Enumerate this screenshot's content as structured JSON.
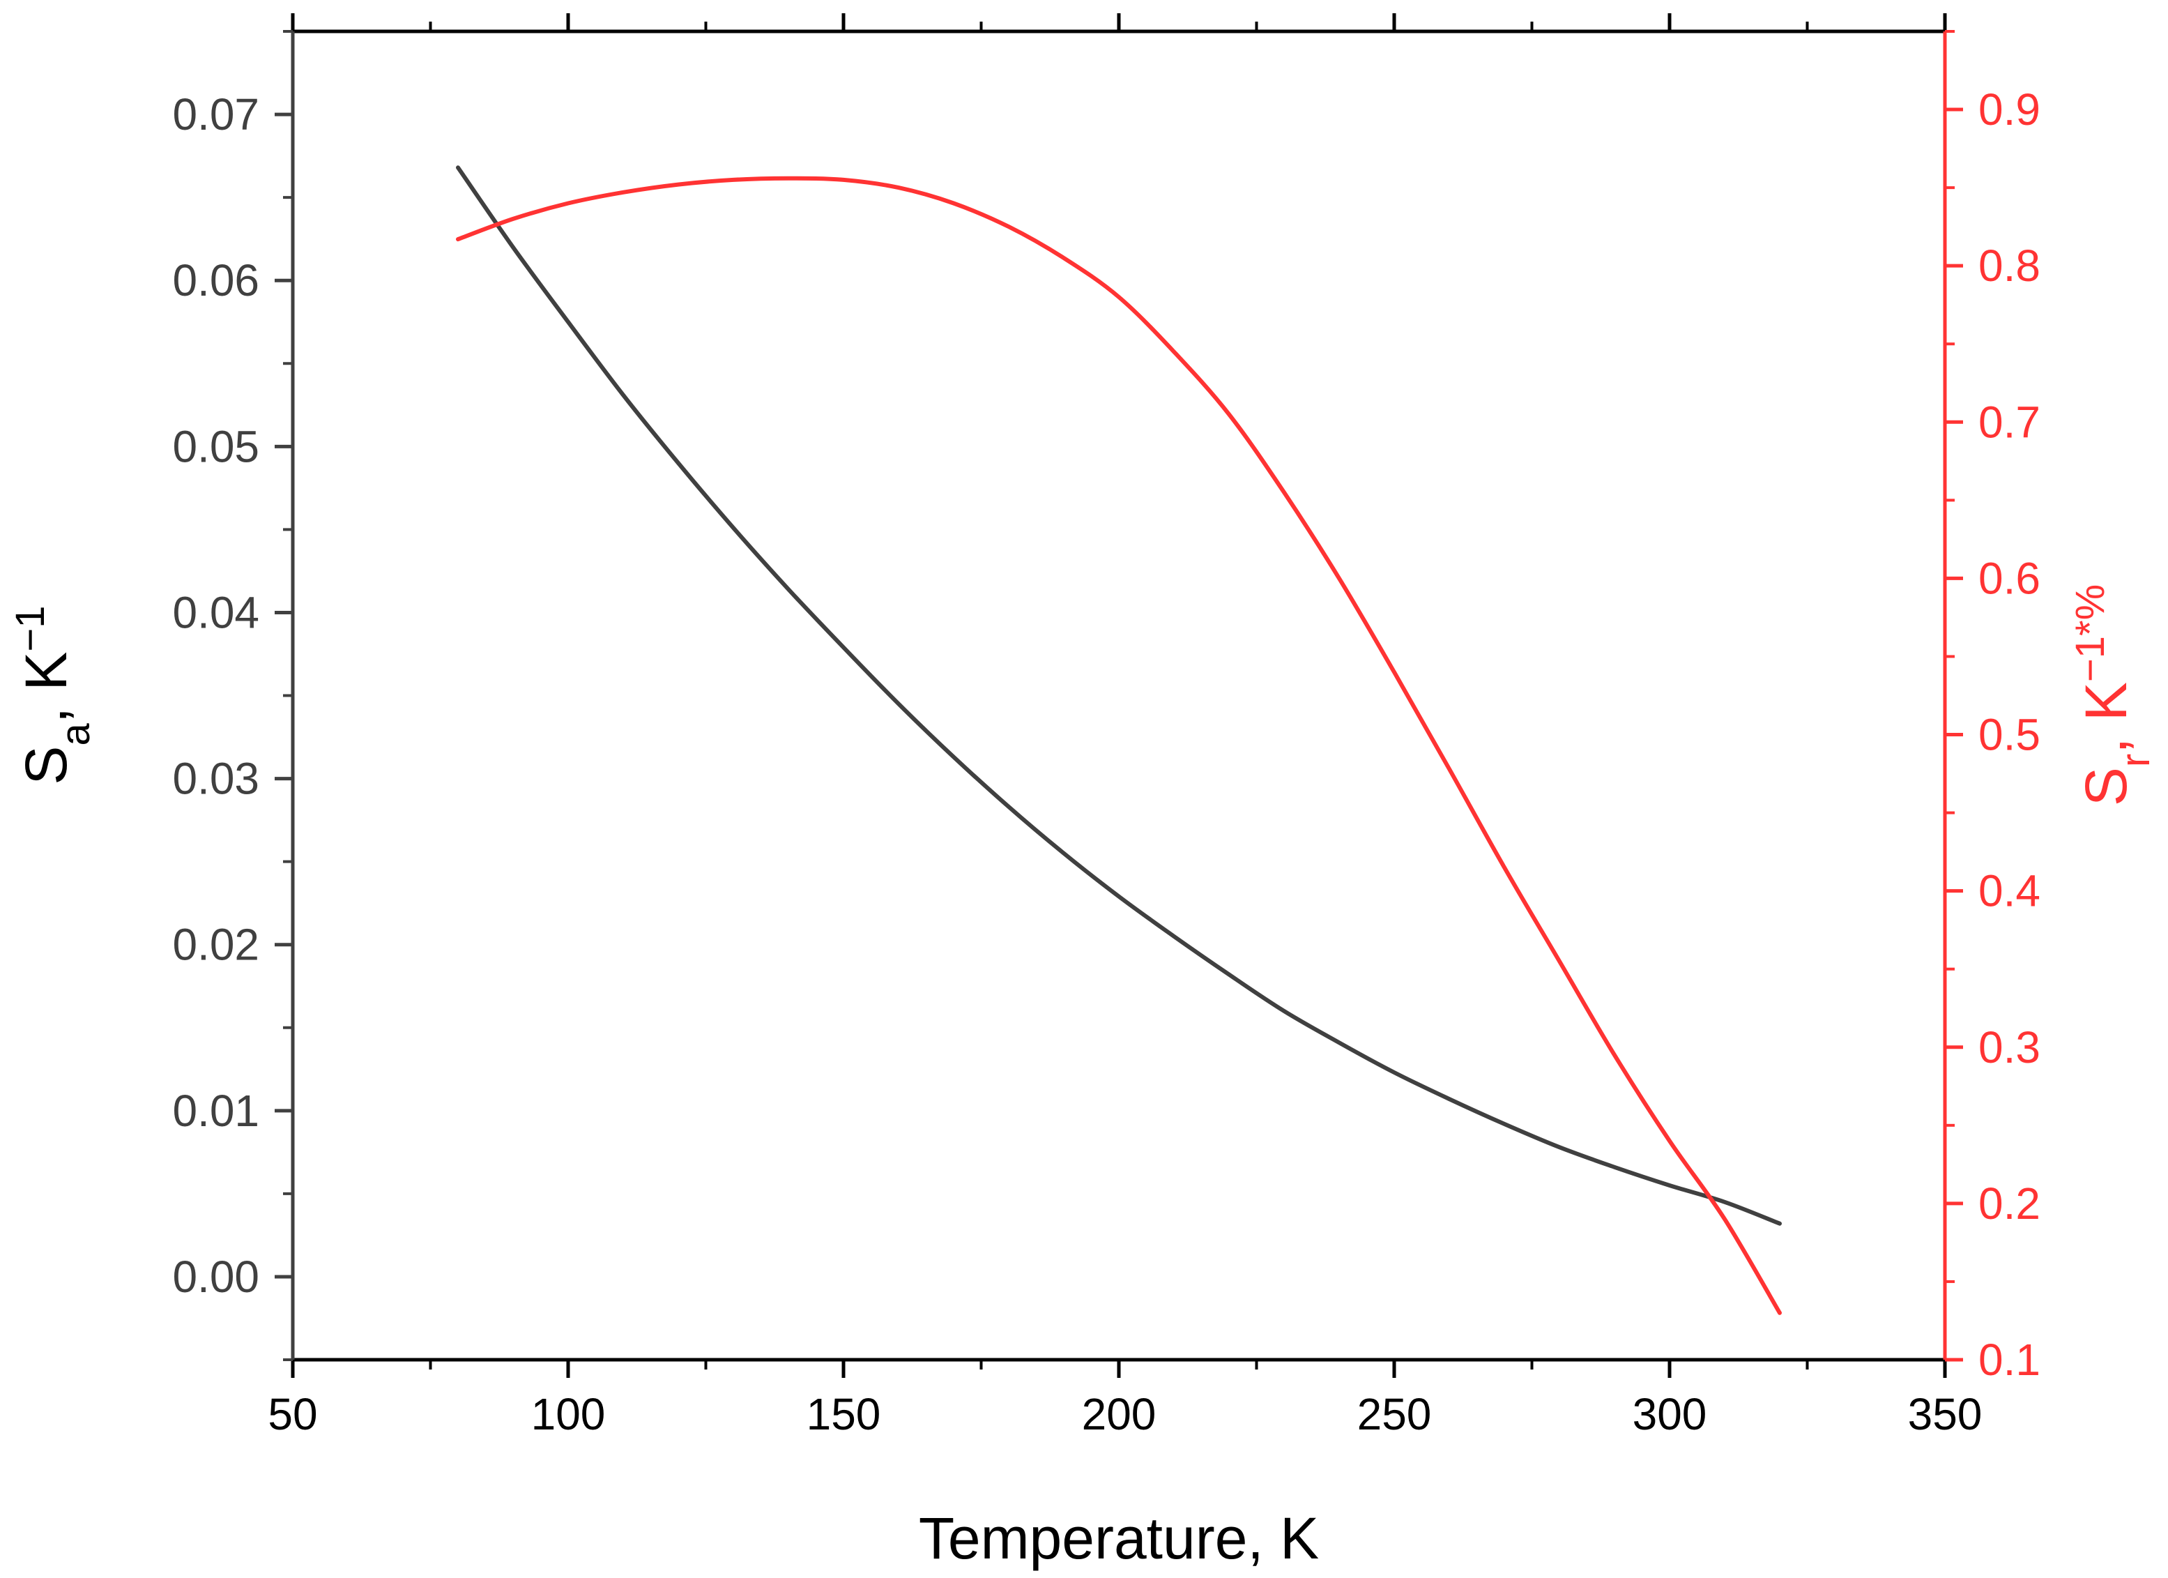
{
  "chart_data": {
    "type": "line",
    "xlabel": "Temperature, K",
    "xlim": [
      50,
      350
    ],
    "x_ticks": [
      "50",
      "100",
      "150",
      "200",
      "250",
      "300",
      "350"
    ],
    "y_left": {
      "label_main": "S",
      "label_sub": "a",
      "label_rest": ", K",
      "label_sup": "−1",
      "ylim": [
        -0.005,
        0.075
      ],
      "ticks": [
        "0.00",
        "0.01",
        "0.02",
        "0.03",
        "0.04",
        "0.05",
        "0.06",
        "0.07"
      ],
      "color": "#404040"
    },
    "y_right": {
      "label_main": "S",
      "label_sub": "r",
      "label_rest": ", K",
      "label_sup": "−1",
      "label_suffix": "*%",
      "ylim": [
        0.1,
        0.95
      ],
      "ticks": [
        "0.1",
        "0.2",
        "0.3",
        "0.4",
        "0.5",
        "0.6",
        "0.7",
        "0.8",
        "0.9"
      ],
      "color": "#ff3333"
    },
    "series": [
      {
        "axis": "left",
        "color": "#404040",
        "x": [
          80,
          90,
          100,
          110,
          120,
          130,
          140,
          150,
          160,
          170,
          180,
          190,
          200,
          210,
          220,
          230,
          240,
          250,
          260,
          270,
          280,
          290,
          300,
          310,
          320
        ],
        "y": [
          0.0668,
          0.062,
          0.0575,
          0.0531,
          0.049,
          0.0451,
          0.0414,
          0.0379,
          0.0345,
          0.0313,
          0.0283,
          0.0255,
          0.0229,
          0.0205,
          0.0182,
          0.016,
          0.0141,
          0.0123,
          0.0107,
          0.0092,
          0.0078,
          0.0066,
          0.0055,
          0.0045,
          0.0032
        ]
      },
      {
        "axis": "right",
        "color": "#ff3333",
        "x": [
          80,
          90,
          100,
          110,
          120,
          130,
          140,
          150,
          160,
          170,
          180,
          190,
          200,
          210,
          220,
          230,
          240,
          250,
          260,
          270,
          280,
          290,
          300,
          310,
          320
        ],
        "y": [
          0.817,
          0.83,
          0.84,
          0.847,
          0.852,
          0.855,
          0.856,
          0.855,
          0.85,
          0.84,
          0.825,
          0.805,
          0.78,
          0.745,
          0.705,
          0.655,
          0.6,
          0.54,
          0.478,
          0.415,
          0.355,
          0.295,
          0.24,
          0.19,
          0.13
        ]
      }
    ]
  }
}
